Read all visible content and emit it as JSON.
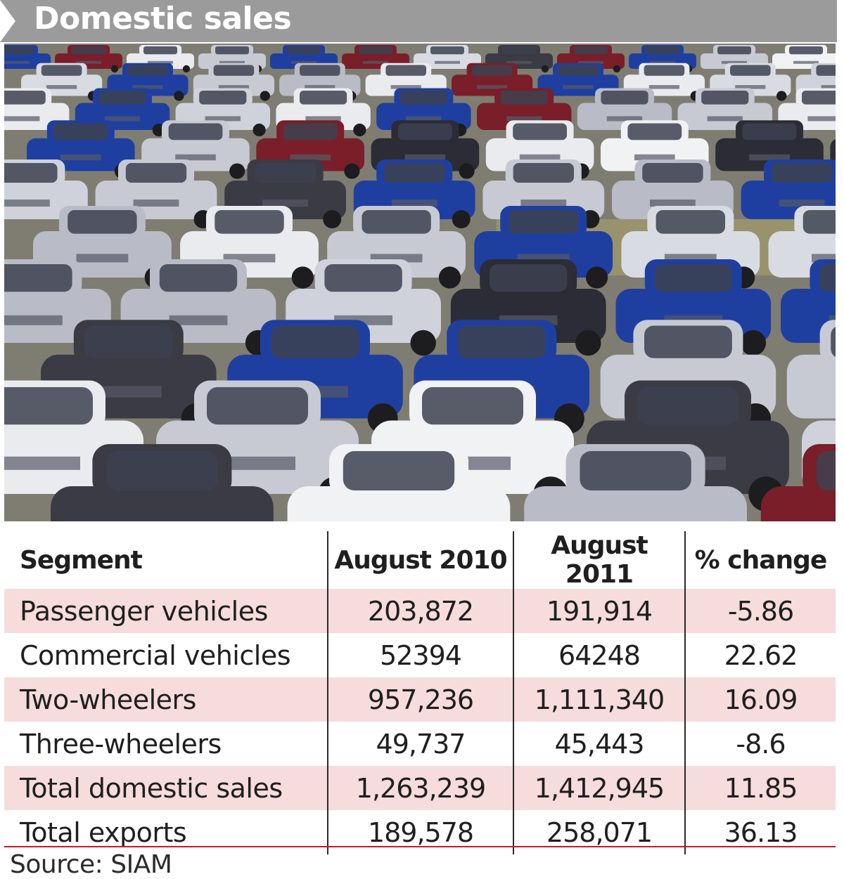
{
  "title": "Domestic sales",
  "photo": {
    "description_icon": "car-lot-photo"
  },
  "chart_data": {
    "type": "table",
    "columns": [
      "Segment",
      "August 2010",
      "August 2011",
      "% change"
    ],
    "rows": [
      {
        "segment": "Passenger vehicles",
        "aug2010": "203,872",
        "aug2011": "191,914",
        "change": "-5.86"
      },
      {
        "segment": "Commercial vehicles",
        "aug2010": "52394",
        "aug2011": "64248",
        "change": "22.62"
      },
      {
        "segment": "Two-wheelers",
        "aug2010": "957,236",
        "aug2011": "1,111,340",
        "change": "16.09"
      },
      {
        "segment": "Three-wheelers",
        "aug2010": "49,737",
        "aug2011": "45,443",
        "change": "-8.6"
      },
      {
        "segment": "Total domestic sales",
        "aug2010": "1,263,239",
        "aug2011": "1,412,945",
        "change": "11.85"
      },
      {
        "segment": "Total exports",
        "aug2010": "189,578",
        "aug2011": "258,071",
        "change": "36.13"
      }
    ]
  },
  "source": "Source: SIAM",
  "colors": {
    "banner": "#9b9b9b",
    "row_highlight": "#f6dcdc",
    "rule": "#c9182a"
  }
}
